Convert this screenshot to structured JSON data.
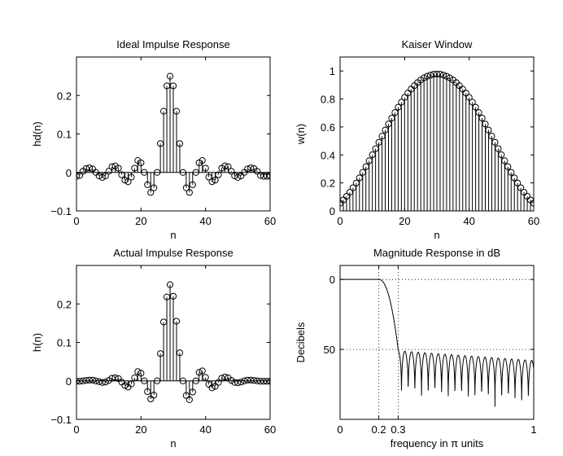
{
  "chart_data": [
    {
      "type": "stem",
      "title": "Ideal Impulse Response",
      "xlabel": "n",
      "ylabel": "hd(n)",
      "xlim": [
        0,
        60
      ],
      "ylim": [
        -0.1,
        0.3
      ],
      "xticks": [
        0,
        20,
        40,
        60
      ],
      "yticks": [
        -0.1,
        0,
        0.1,
        0.2
      ],
      "ytick_labels": [
        "−0.1",
        "0",
        "0.1",
        "0.2"
      ],
      "x": [
        0,
        1,
        2,
        3,
        4,
        5,
        6,
        7,
        8,
        9,
        10,
        11,
        12,
        13,
        14,
        15,
        16,
        17,
        18,
        19,
        20,
        21,
        22,
        23,
        24,
        25,
        26,
        27,
        28,
        29,
        30,
        31,
        32,
        33,
        34,
        35,
        36,
        37,
        38,
        39,
        40,
        41,
        42,
        43,
        44,
        45,
        46,
        47,
        48,
        49,
        50,
        51,
        52,
        53,
        54,
        55,
        56,
        57,
        58,
        59,
        60
      ],
      "y": [
        -0.01,
        -0.008,
        0.003,
        0.01,
        0.012,
        0.009,
        0.0,
        -0.009,
        -0.013,
        -0.009,
        0.003,
        0.015,
        0.017,
        0.011,
        -0.006,
        -0.02,
        -0.024,
        -0.012,
        0.011,
        0.031,
        0.025,
        0.0,
        -0.032,
        -0.052,
        -0.04,
        0.0,
        0.075,
        0.159,
        0.225,
        0.25,
        0.225,
        0.159,
        0.075,
        0.0,
        -0.04,
        -0.052,
        -0.032,
        0.0,
        0.025,
        0.031,
        0.011,
        -0.012,
        -0.024,
        -0.02,
        -0.006,
        0.011,
        0.017,
        0.015,
        0.003,
        -0.009,
        -0.013,
        -0.009,
        0.0,
        0.009,
        0.012,
        0.01,
        0.003,
        -0.008,
        -0.01,
        -0.01,
        -0.01
      ]
    },
    {
      "type": "stem",
      "title": "Kaiser Window",
      "xlabel": "n",
      "ylabel": "w(n)",
      "xlim": [
        0,
        60
      ],
      "ylim": [
        0,
        1.1
      ],
      "xticks": [
        0,
        20,
        40,
        60
      ],
      "yticks": [
        0,
        0.2,
        0.4,
        0.6,
        0.8,
        1
      ],
      "ytick_labels": [
        "0",
        "0.2",
        "0.4",
        "0.6",
        "0.8",
        "1"
      ],
      "x": [
        0,
        1,
        2,
        3,
        4,
        5,
        6,
        7,
        8,
        9,
        10,
        11,
        12,
        13,
        14,
        15,
        16,
        17,
        18,
        19,
        20,
        21,
        22,
        23,
        24,
        25,
        26,
        27,
        28,
        29,
        30,
        31,
        32,
        33,
        34,
        35,
        36,
        37,
        38,
        39,
        40,
        41,
        42,
        43,
        44,
        45,
        46,
        47,
        48,
        49,
        50,
        51,
        52,
        53,
        54,
        55,
        56,
        57,
        58,
        59,
        60
      ],
      "y": [
        0.055,
        0.078,
        0.104,
        0.133,
        0.165,
        0.199,
        0.236,
        0.275,
        0.316,
        0.358,
        0.401,
        0.445,
        0.49,
        0.534,
        0.578,
        0.621,
        0.663,
        0.703,
        0.741,
        0.777,
        0.811,
        0.842,
        0.87,
        0.895,
        0.917,
        0.936,
        0.951,
        0.963,
        0.971,
        0.977,
        0.978,
        0.977,
        0.971,
        0.963,
        0.951,
        0.936,
        0.917,
        0.895,
        0.87,
        0.842,
        0.811,
        0.777,
        0.741,
        0.703,
        0.663,
        0.621,
        0.578,
        0.534,
        0.49,
        0.445,
        0.401,
        0.358,
        0.316,
        0.275,
        0.236,
        0.199,
        0.165,
        0.133,
        0.104,
        0.078,
        0.055
      ]
    },
    {
      "type": "stem",
      "title": "Actual Impulse Response",
      "xlabel": "n",
      "ylabel": "h(n)",
      "xlim": [
        0,
        60
      ],
      "ylim": [
        -0.1,
        0.3
      ],
      "xticks": [
        0,
        20,
        40,
        60
      ],
      "yticks": [
        -0.1,
        0,
        0.1,
        0.2
      ],
      "ytick_labels": [
        "−0.1",
        "0",
        "0.1",
        "0.2"
      ],
      "x": [
        0,
        1,
        2,
        3,
        4,
        5,
        6,
        7,
        8,
        9,
        10,
        11,
        12,
        13,
        14,
        15,
        16,
        17,
        18,
        19,
        20,
        21,
        22,
        23,
        24,
        25,
        26,
        27,
        28,
        29,
        30,
        31,
        32,
        33,
        34,
        35,
        36,
        37,
        38,
        39,
        40,
        41,
        42,
        43,
        44,
        45,
        46,
        47,
        48,
        49,
        50,
        51,
        52,
        53,
        54,
        55,
        56,
        57,
        58,
        59,
        60
      ],
      "y": [
        -0.001,
        -0.001,
        0.0,
        0.001,
        0.002,
        0.002,
        0.0,
        -0.002,
        -0.004,
        -0.003,
        0.001,
        0.007,
        0.008,
        0.006,
        -0.003,
        -0.012,
        -0.016,
        -0.008,
        0.008,
        0.024,
        0.02,
        0.0,
        -0.028,
        -0.047,
        -0.037,
        0.0,
        0.071,
        0.153,
        0.218,
        0.25,
        0.22,
        0.155,
        0.073,
        0.0,
        -0.038,
        -0.049,
        -0.029,
        0.0,
        0.022,
        0.026,
        0.009,
        -0.009,
        -0.018,
        -0.014,
        -0.004,
        0.007,
        0.01,
        0.008,
        0.001,
        -0.004,
        -0.005,
        -0.003,
        0.0,
        0.002,
        0.002,
        0.001,
        0.0,
        -0.001,
        -0.001,
        -0.001,
        -0.001
      ]
    },
    {
      "type": "line",
      "title": "Magnitude Response in dB",
      "xlabel": "frequency in π units",
      "ylabel": "Decibels",
      "xlim": [
        0,
        1
      ],
      "ylim": [
        100,
        -10
      ],
      "y_reversed": true,
      "xticks": [
        0,
        0.2,
        0.3,
        1
      ],
      "xtick_labels": [
        "0",
        "0.2",
        "0.3",
        "1"
      ],
      "yticks": [
        0,
        50
      ],
      "ytick_labels": [
        "0",
        "50"
      ],
      "grid": "dotted",
      "grid_x": [
        0.2,
        0.3,
        1
      ],
      "grid_y": [
        0,
        50
      ],
      "passband_edge": 0.2,
      "stopband_edge": 0.3,
      "passband_db": 0,
      "stopband_floor_db": 50
    }
  ]
}
